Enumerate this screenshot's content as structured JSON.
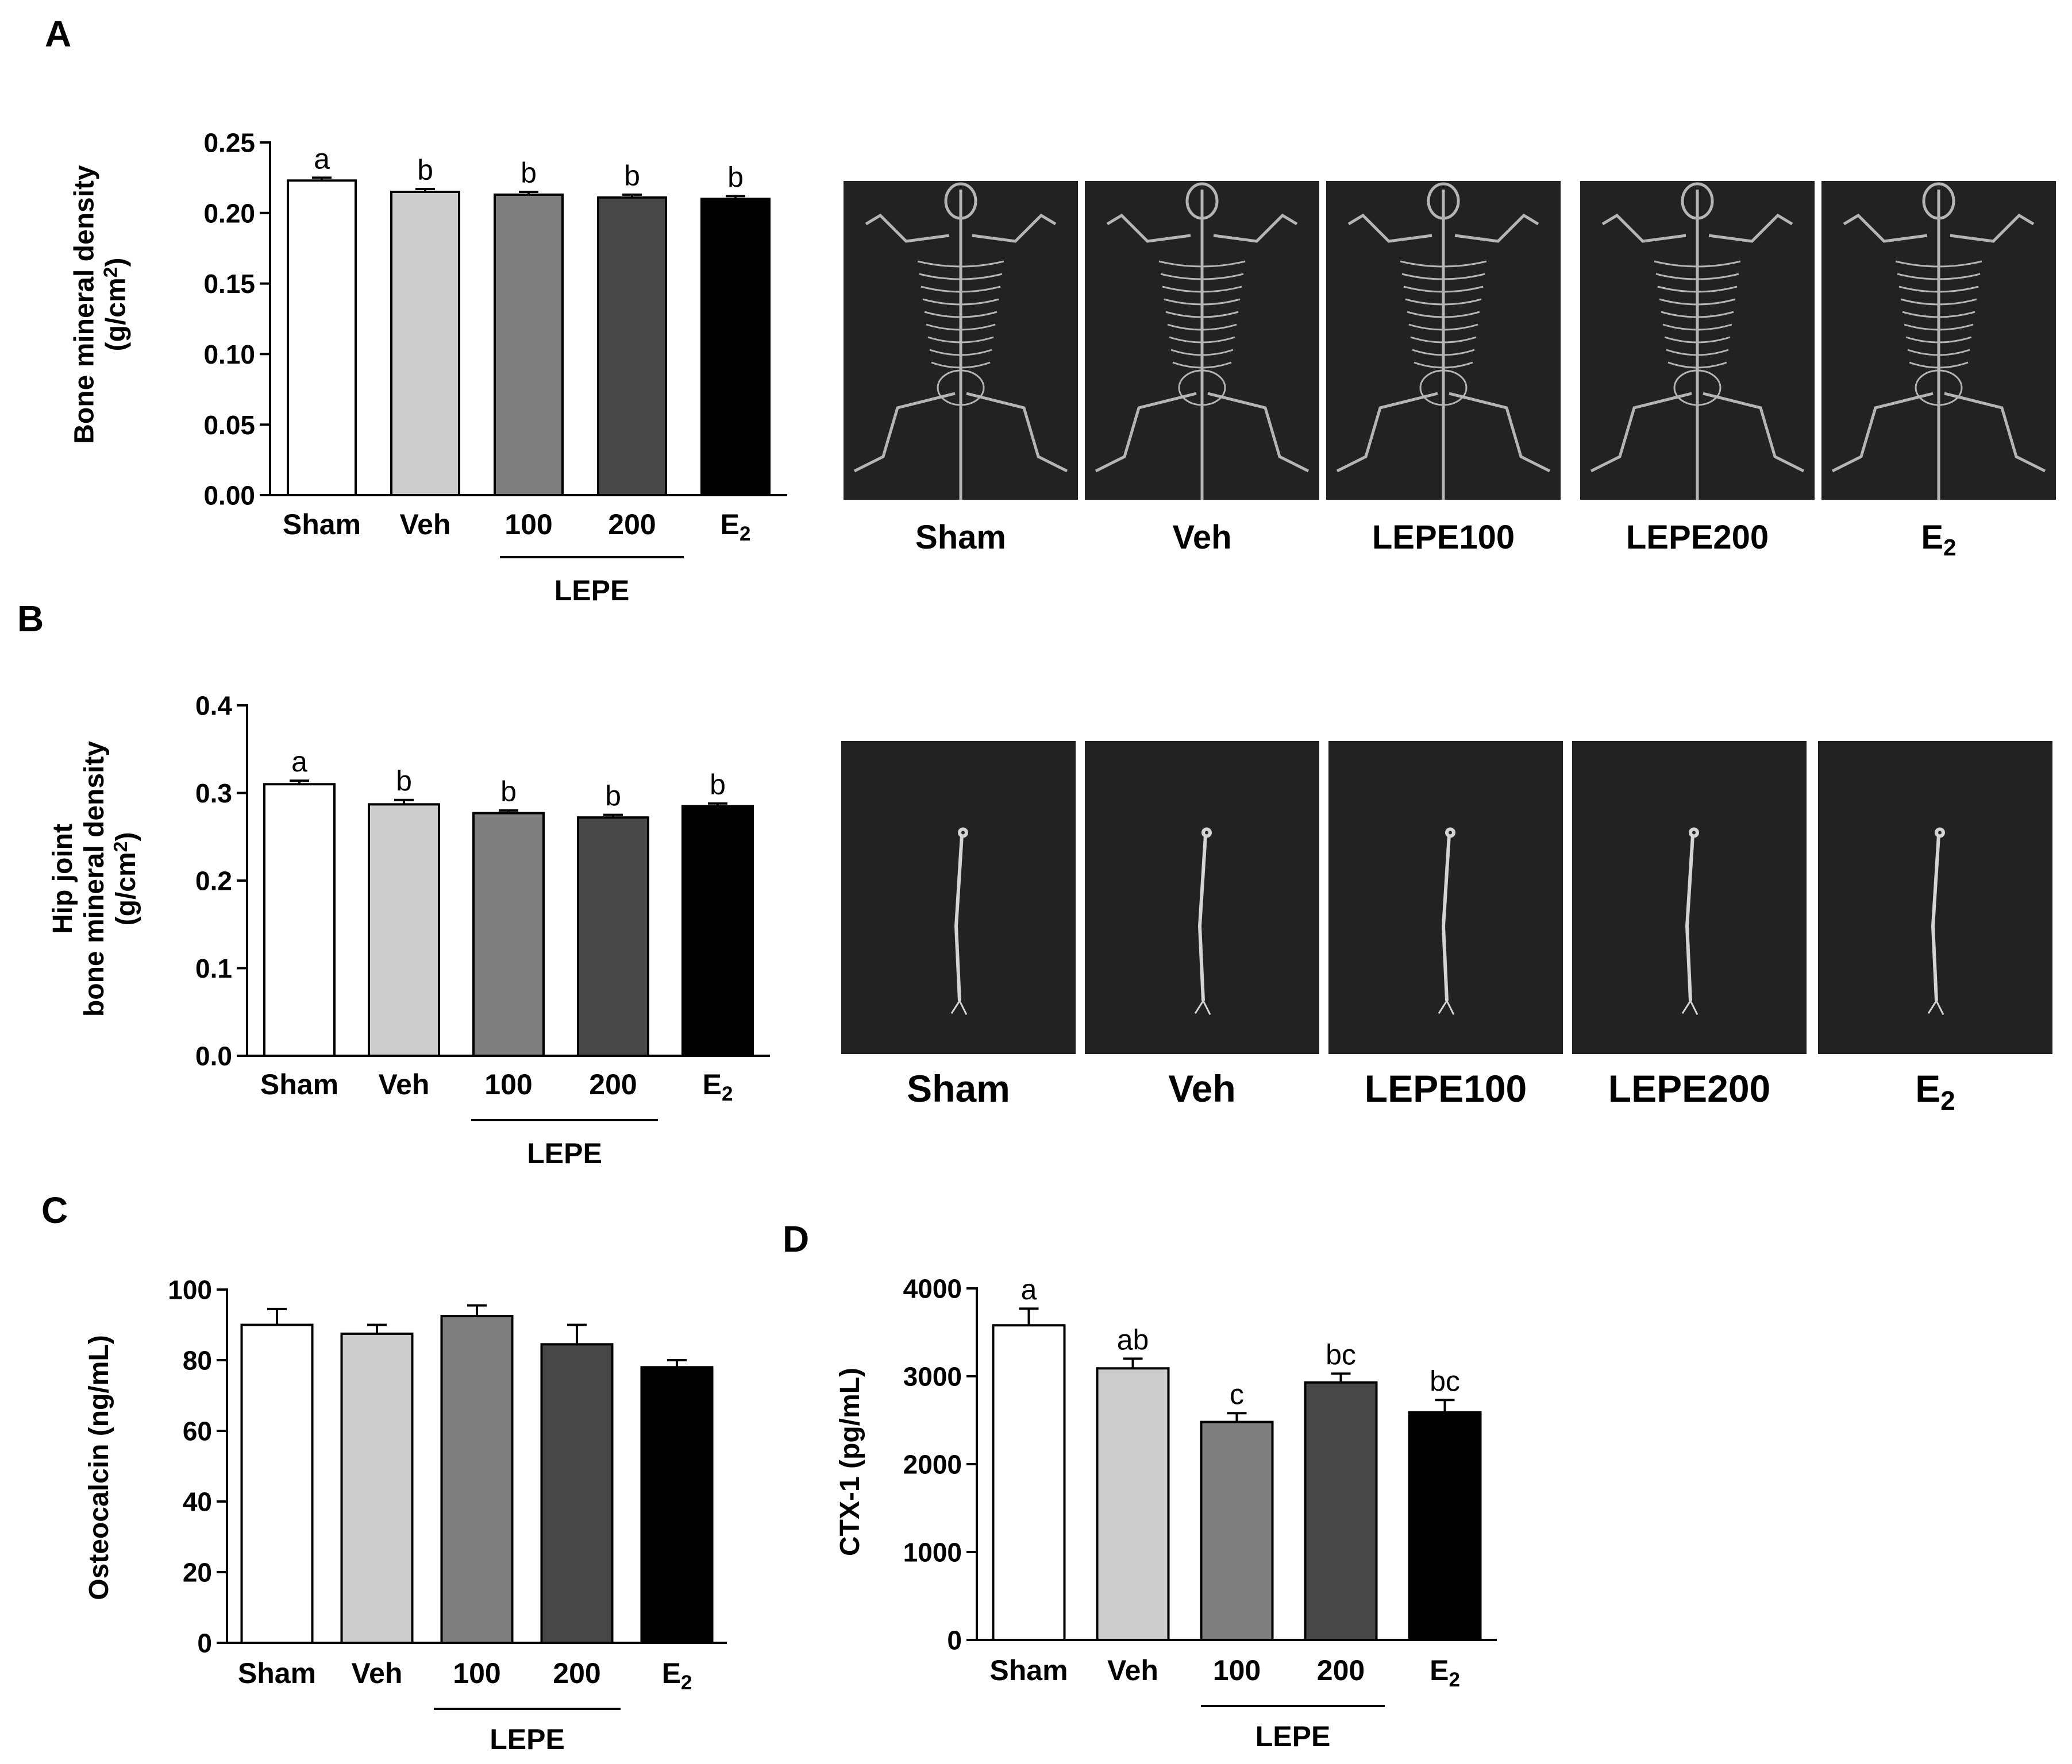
{
  "panels": {
    "a": {
      "letter": "A"
    },
    "b": {
      "letter": "B"
    },
    "c": {
      "letter": "C"
    },
    "d": {
      "letter": "D"
    }
  },
  "group_colors": [
    "#ffffff",
    "#cccccc",
    "#7f7f7f",
    "#474747",
    "#000000"
  ],
  "xray_panels": [
    {
      "id": "a",
      "labels": [
        "Sham",
        "Veh",
        "LEPE100",
        "LEPE200",
        "E2"
      ],
      "subject": "whole-body"
    },
    {
      "id": "b",
      "labels": [
        "Sham",
        "Veh",
        "LEPE100",
        "LEPE200",
        "E2"
      ],
      "subject": "hind-limb"
    }
  ],
  "chart_data": [
    {
      "id": "a",
      "type": "bar",
      "ylabel_lines": [
        "Bone mineral density",
        "(g/cm2)"
      ],
      "categories": [
        "Sham",
        "Veh",
        "100",
        "200",
        "E2"
      ],
      "values": [
        0.223,
        0.215,
        0.213,
        0.211,
        0.21
      ],
      "errors": [
        0.002,
        0.002,
        0.002,
        0.002,
        0.002
      ],
      "significance": [
        "a",
        "b",
        "b",
        "b",
        "b"
      ],
      "ylim": [
        0,
        0.25
      ],
      "yticks": [
        0.0,
        0.05,
        0.1,
        0.15,
        0.2,
        0.25
      ],
      "ytick_labels": [
        "0.00",
        "0.05",
        "0.10",
        "0.15",
        "0.20",
        "0.25"
      ],
      "group_label": "LEPE",
      "group_span": [
        2,
        3
      ]
    },
    {
      "id": "b",
      "type": "bar",
      "ylabel_lines": [
        "Hip joint",
        "bone mineral density",
        "(g/cm2)"
      ],
      "categories": [
        "Sham",
        "Veh",
        "100",
        "200",
        "E2"
      ],
      "values": [
        0.31,
        0.287,
        0.277,
        0.272,
        0.285
      ],
      "errors": [
        0.004,
        0.005,
        0.003,
        0.003,
        0.003
      ],
      "significance": [
        "a",
        "b",
        "b",
        "b",
        "b"
      ],
      "ylim": [
        0,
        0.4
      ],
      "yticks": [
        0.0,
        0.1,
        0.2,
        0.3,
        0.4
      ],
      "ytick_labels": [
        "0.0",
        "0.1",
        "0.2",
        "0.3",
        "0.4"
      ],
      "group_label": "LEPE",
      "group_span": [
        2,
        3
      ]
    },
    {
      "id": "c",
      "type": "bar",
      "ylabel_lines": [
        "Osteocalcin (ng/mL)"
      ],
      "categories": [
        "Sham",
        "Veh",
        "100",
        "200",
        "E2"
      ],
      "values": [
        90,
        87.5,
        92.5,
        84.5,
        78
      ],
      "errors": [
        4.5,
        2.5,
        3,
        5.5,
        2
      ],
      "significance": [],
      "ylim": [
        0,
        100
      ],
      "yticks": [
        0,
        20,
        40,
        60,
        80,
        100
      ],
      "ytick_labels": [
        "0",
        "20",
        "40",
        "60",
        "80",
        "100"
      ],
      "group_label": "LEPE",
      "group_span": [
        2,
        3
      ]
    },
    {
      "id": "d",
      "type": "bar",
      "ylabel_lines": [
        "CTX-1 (pg/mL)"
      ],
      "categories": [
        "Sham",
        "Veh",
        "100",
        "200",
        "E2"
      ],
      "values": [
        3580,
        3090,
        2480,
        2930,
        2590
      ],
      "errors": [
        190,
        110,
        100,
        100,
        140
      ],
      "significance": [
        "a",
        "ab",
        "c",
        "bc",
        "bc"
      ],
      "ylim": [
        0,
        4000
      ],
      "yticks": [
        0,
        1000,
        2000,
        3000,
        4000
      ],
      "ytick_labels": [
        "0",
        "1000",
        "2000",
        "3000",
        "4000"
      ],
      "group_label": "LEPE",
      "group_span": [
        2,
        3
      ]
    }
  ]
}
